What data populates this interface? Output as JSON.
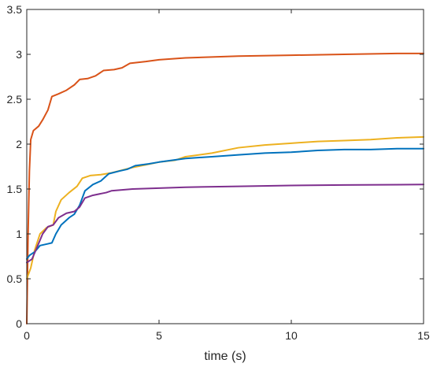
{
  "chart_data": {
    "type": "line",
    "title": "",
    "xlabel": "time (s)",
    "ylabel": "",
    "xlim": [
      0,
      15
    ],
    "ylim": [
      0,
      3.5
    ],
    "xticks": [
      0,
      5,
      10,
      15
    ],
    "xtick_labels": [
      "0",
      "5",
      "10",
      "15"
    ],
    "yticks": [
      0,
      0.5,
      1,
      1.5,
      2,
      2.5,
      3,
      3.5
    ],
    "ytick_labels": [
      "0",
      "0.5",
      "1",
      "1.5",
      "2",
      "2.5",
      "3",
      "3.5"
    ],
    "grid": false,
    "legend": "none",
    "series": [
      {
        "color": "#D95319",
        "points": [
          [
            0,
            0
          ],
          [
            0.05,
            1.0
          ],
          [
            0.1,
            1.7
          ],
          [
            0.15,
            2.05
          ],
          [
            0.25,
            2.15
          ],
          [
            0.45,
            2.2
          ],
          [
            0.6,
            2.27
          ],
          [
            0.8,
            2.38
          ],
          [
            0.95,
            2.53
          ],
          [
            1.2,
            2.56
          ],
          [
            1.5,
            2.6
          ],
          [
            1.8,
            2.66
          ],
          [
            2.0,
            2.72
          ],
          [
            2.3,
            2.73
          ],
          [
            2.6,
            2.76
          ],
          [
            2.9,
            2.82
          ],
          [
            3.3,
            2.83
          ],
          [
            3.6,
            2.85
          ],
          [
            3.9,
            2.9
          ],
          [
            4.5,
            2.92
          ],
          [
            5.0,
            2.94
          ],
          [
            6.0,
            2.96
          ],
          [
            7.0,
            2.97
          ],
          [
            8.0,
            2.98
          ],
          [
            10.0,
            2.99
          ],
          [
            12.0,
            3.0
          ],
          [
            14.0,
            3.01
          ],
          [
            15.0,
            3.01
          ]
        ]
      },
      {
        "color": "#EDB120",
        "points": [
          [
            0,
            0.5
          ],
          [
            0.15,
            0.62
          ],
          [
            0.3,
            0.82
          ],
          [
            0.5,
            1.0
          ],
          [
            0.75,
            1.07
          ],
          [
            1.0,
            1.1
          ],
          [
            1.1,
            1.25
          ],
          [
            1.3,
            1.38
          ],
          [
            1.6,
            1.46
          ],
          [
            1.9,
            1.53
          ],
          [
            2.1,
            1.62
          ],
          [
            2.4,
            1.65
          ],
          [
            2.8,
            1.66
          ],
          [
            3.2,
            1.68
          ],
          [
            3.6,
            1.71
          ],
          [
            4.0,
            1.74
          ],
          [
            4.5,
            1.77
          ],
          [
            5.0,
            1.8
          ],
          [
            5.6,
            1.82
          ],
          [
            6.0,
            1.86
          ],
          [
            7.0,
            1.9
          ],
          [
            8.0,
            1.96
          ],
          [
            9.0,
            1.99
          ],
          [
            10.0,
            2.01
          ],
          [
            11.0,
            2.03
          ],
          [
            12.0,
            2.04
          ],
          [
            13.0,
            2.05
          ],
          [
            14.0,
            2.07
          ],
          [
            15.0,
            2.08
          ]
        ]
      },
      {
        "color": "#0072BD",
        "points": [
          [
            0,
            0.72
          ],
          [
            0.1,
            0.76
          ],
          [
            0.3,
            0.8
          ],
          [
            0.5,
            0.87
          ],
          [
            0.8,
            0.89
          ],
          [
            0.95,
            0.9
          ],
          [
            1.1,
            1.0
          ],
          [
            1.3,
            1.1
          ],
          [
            1.6,
            1.18
          ],
          [
            1.8,
            1.22
          ],
          [
            2.0,
            1.32
          ],
          [
            2.2,
            1.48
          ],
          [
            2.5,
            1.55
          ],
          [
            2.8,
            1.59
          ],
          [
            3.1,
            1.67
          ],
          [
            3.5,
            1.7
          ],
          [
            3.8,
            1.72
          ],
          [
            4.1,
            1.76
          ],
          [
            4.6,
            1.78
          ],
          [
            5.0,
            1.8
          ],
          [
            6.0,
            1.84
          ],
          [
            7.0,
            1.86
          ],
          [
            8.0,
            1.88
          ],
          [
            9.0,
            1.9
          ],
          [
            10.0,
            1.91
          ],
          [
            11.0,
            1.93
          ],
          [
            12.0,
            1.94
          ],
          [
            13.0,
            1.94
          ],
          [
            14.0,
            1.95
          ],
          [
            15.0,
            1.95
          ]
        ]
      },
      {
        "color": "#7E2F8E",
        "points": [
          [
            0,
            0.68
          ],
          [
            0.2,
            0.72
          ],
          [
            0.4,
            0.86
          ],
          [
            0.6,
            1.0
          ],
          [
            0.8,
            1.08
          ],
          [
            1.0,
            1.1
          ],
          [
            1.2,
            1.18
          ],
          [
            1.5,
            1.23
          ],
          [
            1.8,
            1.25
          ],
          [
            2.0,
            1.3
          ],
          [
            2.2,
            1.4
          ],
          [
            2.5,
            1.43
          ],
          [
            3.0,
            1.46
          ],
          [
            3.2,
            1.48
          ],
          [
            4.0,
            1.5
          ],
          [
            5.0,
            1.51
          ],
          [
            6.0,
            1.52
          ],
          [
            8.0,
            1.53
          ],
          [
            10.0,
            1.54
          ],
          [
            12.0,
            1.545
          ],
          [
            15.0,
            1.55
          ]
        ]
      }
    ]
  }
}
